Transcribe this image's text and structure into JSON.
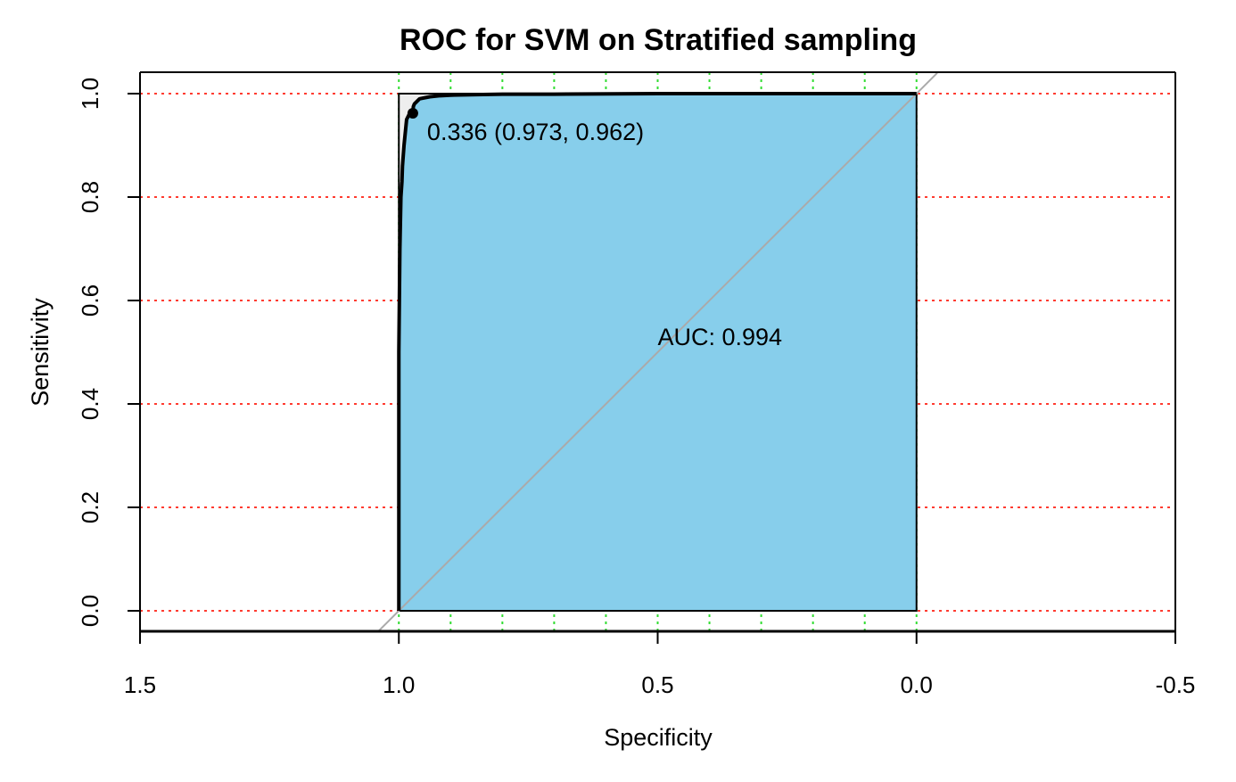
{
  "chart_data": {
    "type": "line",
    "title": "ROC for SVM on Stratified sampling",
    "xlabel": "Specificity",
    "ylabel": "Sensitivity",
    "xlim": [
      1.5,
      -0.5
    ],
    "ylim": [
      0.0,
      1.0
    ],
    "x_axis_reversed": true,
    "x_ticks": [
      1.5,
      1.0,
      0.5,
      0.0,
      -0.5
    ],
    "x_tick_labels": [
      "1.5",
      "1.0",
      "0.5",
      "0.0",
      "-0.5"
    ],
    "y_ticks": [
      0.0,
      0.2,
      0.4,
      0.6,
      0.8,
      1.0
    ],
    "y_tick_labels": [
      "0.0",
      "0.2",
      "0.4",
      "0.6",
      "0.8",
      "1.0"
    ],
    "grid": {
      "horizontal": [
        0.0,
        0.2,
        0.4,
        0.6,
        0.8,
        1.0
      ],
      "horizontal_color": "#ff3b30",
      "vertical": [
        1.0,
        0.9,
        0.8,
        0.7,
        0.6,
        0.5,
        0.4,
        0.3,
        0.2,
        0.1,
        0.0
      ],
      "vertical_color": "#33dd33"
    },
    "auc_fill_color": "#87ceeb",
    "chance_line_color": "#aaaaaa",
    "series": [
      {
        "color": "#000000",
        "specificity": [
          1.0,
          1.0,
          1.0,
          0.999,
          0.998,
          0.997,
          0.996,
          0.994,
          0.993,
          0.99,
          0.987,
          0.985,
          0.98,
          0.976,
          0.973,
          0.972,
          0.97,
          0.965,
          0.96,
          0.95,
          0.94,
          0.92,
          0.9,
          0.85,
          0.8,
          0.7,
          0.5,
          0.2,
          0.0
        ],
        "sensitivity": [
          0.0,
          0.3,
          0.5,
          0.6,
          0.7,
          0.75,
          0.8,
          0.83,
          0.86,
          0.9,
          0.93,
          0.95,
          0.96,
          0.962,
          0.962,
          0.975,
          0.98,
          0.985,
          0.99,
          0.992,
          0.994,
          0.996,
          0.997,
          0.998,
          0.999,
          0.999,
          1.0,
          1.0,
          1.0
        ]
      }
    ],
    "threshold_point": {
      "threshold": 0.336,
      "specificity": 0.973,
      "sensitivity": 0.962,
      "label": "0.336 (0.973, 0.962)"
    },
    "auc_label": "AUC: 0.994"
  }
}
